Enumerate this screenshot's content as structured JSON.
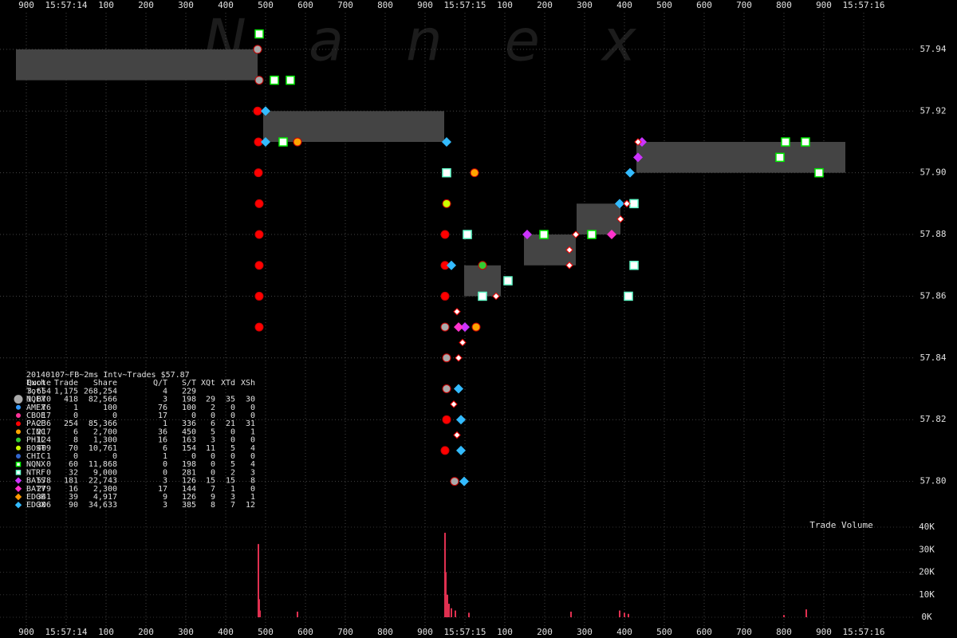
{
  "chart_data": {
    "type": "scatter",
    "watermark": "Nanex",
    "xlim": [
      -166,
      2234
    ],
    "xticks": [
      {
        "value": -100,
        "label": "900"
      },
      {
        "value": 0,
        "label": "15:57:14"
      },
      {
        "value": 100,
        "label": "100"
      },
      {
        "value": 200,
        "label": "200"
      },
      {
        "value": 300,
        "label": "300"
      },
      {
        "value": 400,
        "label": "400"
      },
      {
        "value": 500,
        "label": "500"
      },
      {
        "value": 600,
        "label": "600"
      },
      {
        "value": 700,
        "label": "700"
      },
      {
        "value": 800,
        "label": "800"
      },
      {
        "value": 900,
        "label": "900"
      },
      {
        "value": 1000,
        "label": "15:57:15"
      },
      {
        "value": 1100,
        "label": "100"
      },
      {
        "value": 1200,
        "label": "200"
      },
      {
        "value": 1300,
        "label": "300"
      },
      {
        "value": 1400,
        "label": "400"
      },
      {
        "value": 1500,
        "label": "500"
      },
      {
        "value": 1600,
        "label": "600"
      },
      {
        "value": 1700,
        "label": "700"
      },
      {
        "value": 1800,
        "label": "800"
      },
      {
        "value": 1900,
        "label": "900"
      },
      {
        "value": 2000,
        "label": "15:57:16"
      }
    ],
    "ylim": [
      57.788,
      57.956
    ],
    "yticks": [
      {
        "value": 57.8,
        "label": "57.80"
      },
      {
        "value": 57.82,
        "label": "57.82"
      },
      {
        "value": 57.84,
        "label": "57.84"
      },
      {
        "value": 57.86,
        "label": "57.86"
      },
      {
        "value": 57.88,
        "label": "57.88"
      },
      {
        "value": 57.9,
        "label": "57.90"
      },
      {
        "value": 57.92,
        "label": "57.92"
      },
      {
        "value": 57.94,
        "label": "57.94"
      }
    ],
    "grid": true,
    "spread_boxes": [
      {
        "x0": -126,
        "x1": 480,
        "low": 57.93,
        "high": 57.94
      },
      {
        "x0": 494,
        "x1": 948,
        "low": 57.91,
        "high": 57.92
      },
      {
        "x0": 998,
        "x1": 1090,
        "low": 57.86,
        "high": 57.87
      },
      {
        "x0": 1148,
        "x1": 1278,
        "low": 57.87,
        "high": 57.88
      },
      {
        "x0": 1280,
        "x1": 1390,
        "low": 57.88,
        "high": 57.89
      },
      {
        "x0": 1430,
        "x1": 1954,
        "low": 57.9,
        "high": 57.91
      }
    ],
    "trades": {
      "color": "#ffffff",
      "x": [
        980,
        994,
        984,
        972,
        980,
        1262,
        1262,
        1078,
        1278,
        1406,
        1390,
        1434
      ],
      "values": [
        57.855,
        57.845,
        57.84,
        57.825,
        57.815,
        57.875,
        57.87,
        57.86,
        57.88,
        57.89,
        57.885,
        57.91
      ]
    },
    "stats_title": "20140107~FB~2ms Intv~Trades $57.87",
    "stats_columns": [
      "Exch",
      "Quote",
      "Trade",
      "Share",
      "Q/T",
      "S/T",
      "XQt",
      "XTd",
      "XSh"
    ],
    "total": {
      "label": "Totl",
      "stats": [
        "3,654",
        "1,175",
        "268,254",
        "4",
        "229"
      ]
    },
    "series": [
      {
        "name": "NQEX",
        "color": "#aaaaaa",
        "marker": "circle",
        "stats": [
          "1,070",
          "418",
          "82,566",
          "3",
          "198",
          "29",
          "35",
          "30"
        ],
        "x": [
          480,
          484,
          950,
          954,
          954,
          974
        ],
        "values": [
          57.94,
          57.93,
          57.85,
          57.84,
          57.83,
          57.8
        ]
      },
      {
        "name": "AMEX",
        "color": "#3399ff",
        "marker": "circle",
        "stats": [
          "76",
          "1",
          "100",
          "76",
          "100",
          "2",
          "0",
          "0"
        ],
        "x": [],
        "values": []
      },
      {
        "name": "CBOE",
        "color": "#ff3399",
        "marker": "circle",
        "stats": [
          "17",
          "0",
          "0",
          "17",
          "0",
          "0",
          "0",
          "0"
        ],
        "x": [],
        "values": []
      },
      {
        "name": "PACF",
        "color": "#ff0000",
        "marker": "circle",
        "stats": [
          "236",
          "254",
          "85,366",
          "1",
          "336",
          "6",
          "21",
          "31"
        ],
        "x": [
          480,
          482,
          482,
          484,
          484,
          484,
          484,
          484,
          950,
          950,
          950,
          950,
          954
        ],
        "values": [
          57.92,
          57.91,
          57.9,
          57.89,
          57.88,
          57.87,
          57.86,
          57.85,
          57.81,
          57.88,
          57.87,
          57.86,
          57.82
        ]
      },
      {
        "name": "CINC",
        "color": "#ffa500",
        "marker": "circle",
        "stats": [
          "217",
          "6",
          "2,700",
          "36",
          "450",
          "5",
          "0",
          "1"
        ],
        "x": [
          1024,
          1028,
          580
        ],
        "values": [
          57.9,
          57.85,
          57.91
        ]
      },
      {
        "name": "PHIL",
        "color": "#33cc33",
        "marker": "circle",
        "stats": [
          "124",
          "8",
          "1,300",
          "16",
          "163",
          "3",
          "0",
          "0"
        ],
        "x": [
          1044
        ],
        "values": [
          57.87
        ]
      },
      {
        "name": "BOST",
        "color": "#ccff00",
        "marker": "circle",
        "stats": [
          "409",
          "70",
          "10,761",
          "6",
          "154",
          "11",
          "5",
          "4"
        ],
        "x": [
          954
        ],
        "values": [
          57.89
        ]
      },
      {
        "name": "CHIC",
        "color": "#3366cc",
        "marker": "circle",
        "stats": [
          "1",
          "0",
          "0",
          "1",
          "0",
          "0",
          "0",
          "0"
        ],
        "x": [],
        "values": []
      },
      {
        "name": "NQNX",
        "color": "#00ee00",
        "marker": "square",
        "stats": [
          "0",
          "60",
          "11,868",
          "0",
          "198",
          "0",
          "5",
          "4"
        ],
        "x": [
          484,
          522,
          562,
          544,
          1198,
          1318,
          1854,
          1790,
          1888,
          1804
        ],
        "values": [
          57.945,
          57.93,
          57.93,
          57.91,
          57.88,
          57.88,
          57.91,
          57.905,
          57.9,
          57.91
        ]
      },
      {
        "name": "NTRF",
        "color": "#66ffcc",
        "marker": "square",
        "stats": [
          "0",
          "32",
          "9,000",
          "0",
          "281",
          "0",
          "2",
          "3"
        ],
        "x": [
          954,
          1006,
          1108,
          1424,
          1424,
          1410,
          1044
        ],
        "values": [
          57.9,
          57.88,
          57.865,
          57.89,
          57.87,
          57.86,
          57.86
        ]
      },
      {
        "name": "BATS",
        "color": "#cc33ff",
        "marker": "diamond",
        "stats": [
          "578",
          "181",
          "22,743",
          "3",
          "126",
          "15",
          "15",
          "8"
        ],
        "x": [
          1434,
          1444,
          1156,
          1000
        ],
        "values": [
          57.905,
          57.91,
          57.88,
          57.85
        ]
      },
      {
        "name": "BATY",
        "color": "#ff33cc",
        "marker": "diamond",
        "stats": [
          "279",
          "16",
          "2,300",
          "17",
          "144",
          "7",
          "1",
          "0"
        ],
        "x": [
          1368,
          984
        ],
        "values": [
          57.88,
          57.85
        ]
      },
      {
        "name": "EDGE",
        "color": "#ff9900",
        "marker": "diamond",
        "stats": [
          "341",
          "39",
          "4,917",
          "9",
          "126",
          "9",
          "3",
          "1"
        ],
        "x": [],
        "values": []
      },
      {
        "name": "EDGX",
        "color": "#33bbff",
        "marker": "diamond",
        "stats": [
          "306",
          "90",
          "34,633",
          "3",
          "385",
          "8",
          "7",
          "12"
        ],
        "x": [
          954,
          500,
          500,
          966,
          990,
          990,
          998,
          984,
          1388,
          1414
        ],
        "values": [
          57.91,
          57.92,
          57.91,
          57.87,
          57.82,
          57.81,
          57.8,
          57.83,
          57.89,
          57.9
        ]
      }
    ],
    "volume": {
      "label": "Trade Volume",
      "color": "#e03050",
      "ylim": [
        0,
        40000
      ],
      "yticks": [
        {
          "value": 0,
          "label": "0K"
        },
        {
          "value": 10000,
          "label": "10K"
        },
        {
          "value": 20000,
          "label": "20K"
        },
        {
          "value": 30000,
          "label": "30K"
        },
        {
          "value": 40000,
          "label": "40K"
        }
      ],
      "x": [
        482,
        484,
        486,
        580,
        950,
        952,
        956,
        960,
        966,
        976,
        1010,
        1266,
        1388,
        1400,
        1410,
        1800,
        1856
      ],
      "values": [
        32500,
        8000,
        3000,
        2500,
        37500,
        20000,
        10000,
        6000,
        4000,
        3000,
        2000,
        2500,
        3000,
        2000,
        1500,
        1000,
        3500
      ]
    }
  }
}
